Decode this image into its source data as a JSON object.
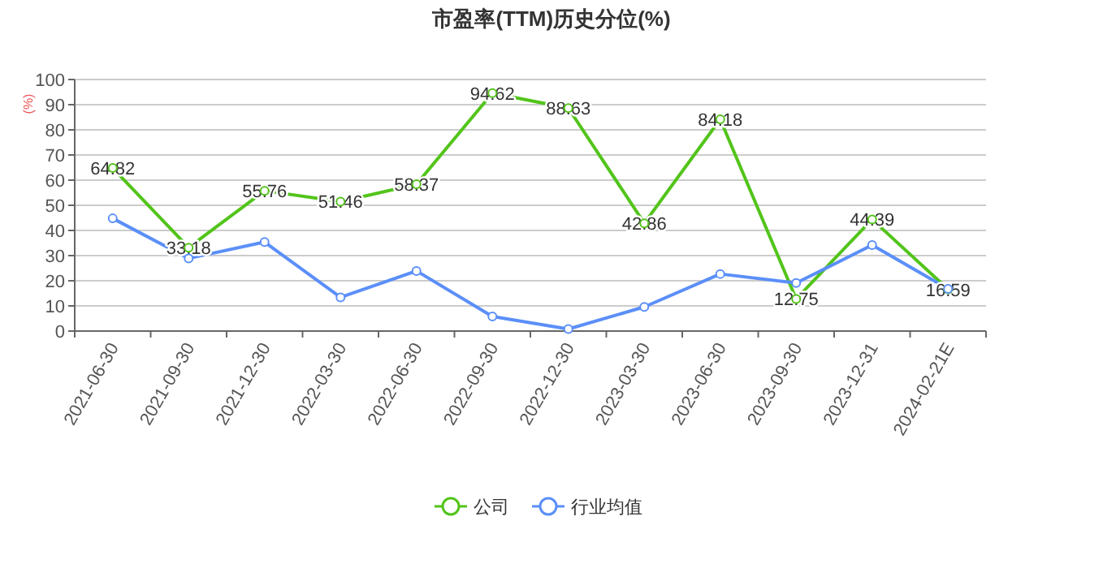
{
  "chart_data": {
    "type": "line",
    "title": "市盈率(TTM)历史分位(%)",
    "ylabel": "(%)",
    "categories": [
      "2021-06-30",
      "2021-09-30",
      "2021-12-30",
      "2022-03-30",
      "2022-06-30",
      "2022-09-30",
      "2022-12-30",
      "2023-03-30",
      "2023-06-30",
      "2023-09-30",
      "2023-12-31",
      "2024-02-21E"
    ],
    "series": [
      {
        "name": "公司",
        "color": "#52c41a",
        "values": [
          64.82,
          33.18,
          55.76,
          51.46,
          58.37,
          94.62,
          88.63,
          42.86,
          84.18,
          12.75,
          44.39,
          16.59
        ],
        "value_labels": [
          "64.82",
          "33.18",
          "55.76",
          "51.46",
          "58.37",
          "94.62",
          "88.63",
          "42.86",
          "84.18",
          "12.75",
          "44.39",
          "16.59"
        ]
      },
      {
        "name": "行业均值",
        "color": "#5b8ff9",
        "values": [
          44.8,
          28.9,
          35.4,
          13.4,
          23.9,
          5.8,
          0.8,
          9.6,
          22.7,
          19.1,
          34.2,
          16.8
        ]
      }
    ],
    "ylim": [
      0,
      100
    ],
    "yticks": [
      0,
      10,
      20,
      30,
      40,
      50,
      60,
      70,
      80,
      90,
      100
    ],
    "grid": "y",
    "legend": "bottom",
    "marker": "circle",
    "line_style": "solid"
  }
}
